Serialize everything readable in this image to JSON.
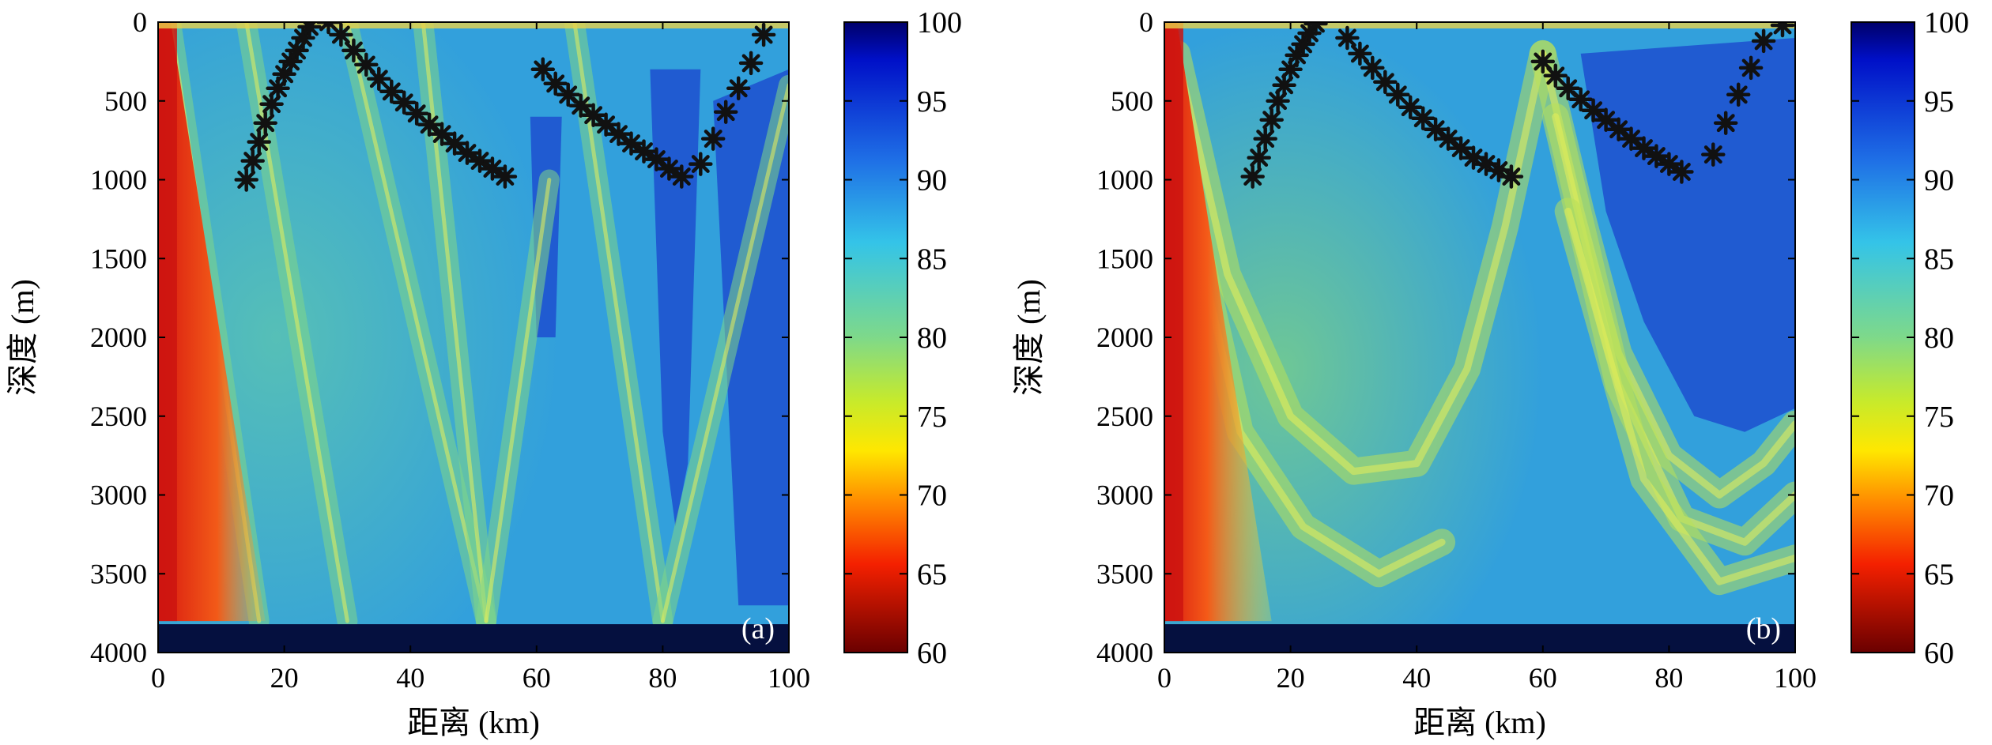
{
  "chart_data": [
    {
      "type": "heatmap",
      "panel_label": "(a)",
      "xlabel": "距离 (km)",
      "ylabel": "深度 (m)",
      "xlim": [
        0,
        100
      ],
      "ylim": [
        4000,
        0
      ],
      "x_ticks": [
        "0",
        "20",
        "40",
        "60",
        "80",
        "100"
      ],
      "y_ticks": [
        "0",
        "500",
        "1000",
        "1500",
        "2000",
        "2500",
        "3000",
        "3500",
        "4000"
      ],
      "colorbar": {
        "range": [
          60,
          100
        ],
        "ticks": [
          "100",
          "95",
          "90",
          "85",
          "80",
          "75",
          "70",
          "65",
          "60"
        ],
        "colormap": "jet-reversed"
      },
      "colors": {
        "bottom": "#05103f",
        "background": "#32a0dc",
        "near_source": "#ee2a10",
        "beam": "#7fd688",
        "shadow": "#1d4fcf",
        "markers": "#111111"
      },
      "star_markers": [
        {
          "x": 14,
          "y": 1000
        },
        {
          "x": 15,
          "y": 880
        },
        {
          "x": 16,
          "y": 760
        },
        {
          "x": 17,
          "y": 640
        },
        {
          "x": 18,
          "y": 520
        },
        {
          "x": 19,
          "y": 420
        },
        {
          "x": 20,
          "y": 330
        },
        {
          "x": 21,
          "y": 250
        },
        {
          "x": 22,
          "y": 180
        },
        {
          "x": 23,
          "y": 100
        },
        {
          "x": 24,
          "y": 30
        },
        {
          "x": 27,
          "y": 0
        },
        {
          "x": 29,
          "y": 80
        },
        {
          "x": 31,
          "y": 180
        },
        {
          "x": 33,
          "y": 270
        },
        {
          "x": 35,
          "y": 360
        },
        {
          "x": 37,
          "y": 440
        },
        {
          "x": 39,
          "y": 510
        },
        {
          "x": 41,
          "y": 580
        },
        {
          "x": 43,
          "y": 650
        },
        {
          "x": 45,
          "y": 710
        },
        {
          "x": 47,
          "y": 770
        },
        {
          "x": 49,
          "y": 830
        },
        {
          "x": 51,
          "y": 880
        },
        {
          "x": 53,
          "y": 930
        },
        {
          "x": 55,
          "y": 980
        },
        {
          "x": 61,
          "y": 300
        },
        {
          "x": 63,
          "y": 390
        },
        {
          "x": 65,
          "y": 460
        },
        {
          "x": 67,
          "y": 530
        },
        {
          "x": 69,
          "y": 590
        },
        {
          "x": 71,
          "y": 650
        },
        {
          "x": 73,
          "y": 710
        },
        {
          "x": 75,
          "y": 770
        },
        {
          "x": 77,
          "y": 820
        },
        {
          "x": 79,
          "y": 870
        },
        {
          "x": 81,
          "y": 930
        },
        {
          "x": 83,
          "y": 980
        },
        {
          "x": 86,
          "y": 900
        },
        {
          "x": 88,
          "y": 740
        },
        {
          "x": 90,
          "y": 570
        },
        {
          "x": 92,
          "y": 420
        },
        {
          "x": 94,
          "y": 260
        },
        {
          "x": 96,
          "y": 80
        }
      ],
      "beams": [
        {
          "points": [
            [
              2,
              0
            ],
            [
              16,
              3800
            ]
          ]
        },
        {
          "points": [
            [
              14,
              0
            ],
            [
              30,
              3800
            ]
          ]
        },
        {
          "points": [
            [
              30,
              0
            ],
            [
              52,
              3800
            ]
          ]
        },
        {
          "points": [
            [
              42,
              0
            ],
            [
              52,
              3800
            ]
          ]
        },
        {
          "points": [
            [
              52,
              3800
            ],
            [
              62,
              1000
            ]
          ]
        },
        {
          "points": [
            [
              66,
              0
            ],
            [
              80,
              3800
            ]
          ]
        },
        {
          "points": [
            [
              80,
              3800
            ],
            [
              100,
              400
            ]
          ]
        }
      ],
      "shadow_zones": [
        {
          "points": [
            [
              78,
              300
            ],
            [
              86,
              300
            ],
            [
              84,
              2800
            ],
            [
              82,
              3200
            ],
            [
              80,
              2600
            ]
          ]
        },
        {
          "points": [
            [
              88,
              500
            ],
            [
              100,
              300
            ],
            [
              100,
              3700
            ],
            [
              92,
              3700
            ]
          ]
        },
        {
          "points": [
            [
              59,
              600
            ],
            [
              64,
              600
            ],
            [
              63,
              2000
            ],
            [
              60,
              2000
            ]
          ]
        }
      ]
    },
    {
      "type": "heatmap",
      "panel_label": "(b)",
      "xlabel": "距离 (km)",
      "ylabel": "深度 (m)",
      "xlim": [
        0,
        100
      ],
      "ylim": [
        4000,
        0
      ],
      "x_ticks": [
        "0",
        "20",
        "40",
        "60",
        "80",
        "100"
      ],
      "y_ticks": [
        "0",
        "500",
        "1000",
        "1500",
        "2000",
        "2500",
        "3000",
        "3500",
        "4000"
      ],
      "colorbar": {
        "range": [
          60,
          100
        ],
        "ticks": [
          "100",
          "95",
          "90",
          "85",
          "80",
          "75",
          "70",
          "65",
          "60"
        ],
        "colormap": "jet-reversed"
      },
      "colors": {
        "bottom": "#05103f",
        "background": "#32a0dc",
        "near_source": "#ee2a10",
        "beam": "#b8e05a",
        "shadow": "#1d4fcf",
        "markers": "#111111"
      },
      "star_markers": [
        {
          "x": 14,
          "y": 980
        },
        {
          "x": 15,
          "y": 860
        },
        {
          "x": 16,
          "y": 740
        },
        {
          "x": 17,
          "y": 620
        },
        {
          "x": 18,
          "y": 500
        },
        {
          "x": 19,
          "y": 400
        },
        {
          "x": 20,
          "y": 300
        },
        {
          "x": 21,
          "y": 210
        },
        {
          "x": 22,
          "y": 140
        },
        {
          "x": 23,
          "y": 70
        },
        {
          "x": 24,
          "y": 10
        },
        {
          "x": 29,
          "y": 100
        },
        {
          "x": 31,
          "y": 200
        },
        {
          "x": 33,
          "y": 290
        },
        {
          "x": 35,
          "y": 380
        },
        {
          "x": 37,
          "y": 460
        },
        {
          "x": 39,
          "y": 540
        },
        {
          "x": 41,
          "y": 610
        },
        {
          "x": 43,
          "y": 680
        },
        {
          "x": 45,
          "y": 740
        },
        {
          "x": 47,
          "y": 800
        },
        {
          "x": 49,
          "y": 860
        },
        {
          "x": 51,
          "y": 900
        },
        {
          "x": 53,
          "y": 940
        },
        {
          "x": 55,
          "y": 980
        },
        {
          "x": 60,
          "y": 250
        },
        {
          "x": 62,
          "y": 340
        },
        {
          "x": 64,
          "y": 420
        },
        {
          "x": 66,
          "y": 490
        },
        {
          "x": 68,
          "y": 560
        },
        {
          "x": 70,
          "y": 620
        },
        {
          "x": 72,
          "y": 680
        },
        {
          "x": 74,
          "y": 740
        },
        {
          "x": 76,
          "y": 800
        },
        {
          "x": 78,
          "y": 850
        },
        {
          "x": 80,
          "y": 900
        },
        {
          "x": 82,
          "y": 950
        },
        {
          "x": 87,
          "y": 840
        },
        {
          "x": 89,
          "y": 640
        },
        {
          "x": 91,
          "y": 460
        },
        {
          "x": 93,
          "y": 290
        },
        {
          "x": 95,
          "y": 120
        },
        {
          "x": 98,
          "y": 20
        }
      ],
      "beams": [
        {
          "points": [
            [
              2,
              200
            ],
            [
              10,
              1600
            ],
            [
              20,
              2500
            ],
            [
              30,
              2850
            ],
            [
              40,
              2800
            ],
            [
              48,
              2200
            ],
            [
              54,
              1300
            ],
            [
              60,
              200
            ]
          ]
        },
        {
          "points": [
            [
              3,
              1000
            ],
            [
              12,
              2600
            ],
            [
              22,
              3200
            ],
            [
              34,
              3500
            ],
            [
              44,
              3300
            ]
          ]
        },
        {
          "points": [
            [
              60,
              200
            ],
            [
              66,
              1200
            ],
            [
              72,
              2100
            ],
            [
              80,
              2750
            ],
            [
              88,
              3000
            ],
            [
              95,
              2800
            ],
            [
              100,
              2550
            ]
          ]
        },
        {
          "points": [
            [
              62,
              600
            ],
            [
              72,
              2300
            ],
            [
              82,
              3150
            ],
            [
              92,
              3300
            ],
            [
              100,
              3000
            ]
          ]
        },
        {
          "points": [
            [
              64,
              1200
            ],
            [
              76,
              2900
            ],
            [
              88,
              3550
            ],
            [
              100,
              3400
            ]
          ]
        }
      ],
      "shadow_zones": [
        {
          "points": [
            [
              66,
              200
            ],
            [
              100,
              100
            ],
            [
              100,
              2450
            ],
            [
              92,
              2600
            ],
            [
              84,
              2500
            ],
            [
              76,
              1900
            ],
            [
              70,
              1200
            ]
          ]
        }
      ]
    }
  ]
}
